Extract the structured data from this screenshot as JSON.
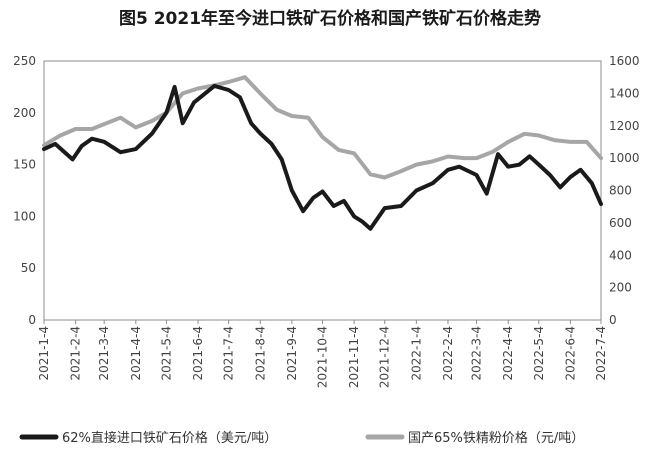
{
  "chart_data": {
    "type": "line",
    "title": "图5  2021年至今进口铁矿石价格和国产铁矿石价格走势",
    "x_ticks": [
      "2021-1-4",
      "2021-2-4",
      "2021-3-4",
      "2021-4-4",
      "2021-5-4",
      "2021-6-4",
      "2021-7-4",
      "2021-8-4",
      "2021-9-4",
      "2021-10-4",
      "2021-11-4",
      "2021-12-4",
      "2022-1-4",
      "2022-2-4",
      "2022-3-4",
      "2022-4-4",
      "2022-5-4",
      "2022-6-4",
      "2022-7-4"
    ],
    "y_left": {
      "min": 0,
      "max": 250,
      "ticks": [
        0,
        50,
        100,
        150,
        200,
        250
      ]
    },
    "y_right": {
      "min": 0,
      "max": 1600,
      "ticks": [
        0,
        200,
        400,
        600,
        800,
        1000,
        1200,
        1400,
        1600
      ]
    },
    "grid": false,
    "legend_position": "bottom",
    "series": [
      {
        "name": "62%直接进口铁矿石价格（美元/吨）",
        "axis": "left",
        "color": "#1a1a1a",
        "x": [
          "2021-01-04",
          "2021-01-15",
          "2021-02-01",
          "2021-02-10",
          "2021-02-20",
          "2021-03-04",
          "2021-03-20",
          "2021-04-04",
          "2021-04-20",
          "2021-05-04",
          "2021-05-12",
          "2021-05-20",
          "2021-05-31",
          "2021-06-10",
          "2021-06-20",
          "2021-07-04",
          "2021-07-15",
          "2021-07-26",
          "2021-08-04",
          "2021-08-15",
          "2021-08-25",
          "2021-09-04",
          "2021-09-15",
          "2021-09-25",
          "2021-10-04",
          "2021-10-15",
          "2021-10-25",
          "2021-11-04",
          "2021-11-12",
          "2021-11-20",
          "2021-12-04",
          "2021-12-20",
          "2022-01-04",
          "2022-01-20",
          "2022-02-04",
          "2022-02-15",
          "2022-03-04",
          "2022-03-14",
          "2022-03-25",
          "2022-04-04",
          "2022-04-15",
          "2022-04-25",
          "2022-05-04",
          "2022-05-15",
          "2022-05-25",
          "2022-06-04",
          "2022-06-14",
          "2022-06-25",
          "2022-07-04"
        ],
        "values": [
          165,
          170,
          155,
          168,
          175,
          172,
          162,
          165,
          180,
          200,
          225,
          190,
          210,
          218,
          226,
          222,
          215,
          190,
          180,
          170,
          155,
          125,
          105,
          118,
          124,
          110,
          115,
          100,
          95,
          88,
          108,
          110,
          125,
          132,
          145,
          148,
          140,
          122,
          160,
          148,
          150,
          158,
          150,
          140,
          128,
          138,
          145,
          132,
          112
        ]
      },
      {
        "name": "国产65%铁精粉价格（元/吨）",
        "axis": "right",
        "color": "#a6a6a6",
        "x": [
          "2021-01-04",
          "2021-01-20",
          "2021-02-04",
          "2021-02-20",
          "2021-03-04",
          "2021-03-20",
          "2021-04-04",
          "2021-04-20",
          "2021-05-04",
          "2021-05-20",
          "2021-06-04",
          "2021-06-20",
          "2021-07-04",
          "2021-07-20",
          "2021-08-04",
          "2021-08-20",
          "2021-09-04",
          "2021-09-20",
          "2021-10-04",
          "2021-10-20",
          "2021-11-04",
          "2021-11-20",
          "2021-12-04",
          "2021-12-20",
          "2022-01-04",
          "2022-01-20",
          "2022-02-04",
          "2022-02-20",
          "2022-03-04",
          "2022-03-20",
          "2022-04-04",
          "2022-04-20",
          "2022-05-04",
          "2022-05-20",
          "2022-06-04",
          "2022-06-20",
          "2022-07-04"
        ],
        "values": [
          1080,
          1140,
          1180,
          1180,
          1210,
          1250,
          1190,
          1230,
          1280,
          1400,
          1430,
          1450,
          1470,
          1500,
          1400,
          1300,
          1260,
          1250,
          1130,
          1050,
          1030,
          900,
          880,
          920,
          960,
          980,
          1010,
          1000,
          1000,
          1040,
          1100,
          1150,
          1140,
          1110,
          1100,
          1100,
          1000
        ]
      }
    ]
  }
}
